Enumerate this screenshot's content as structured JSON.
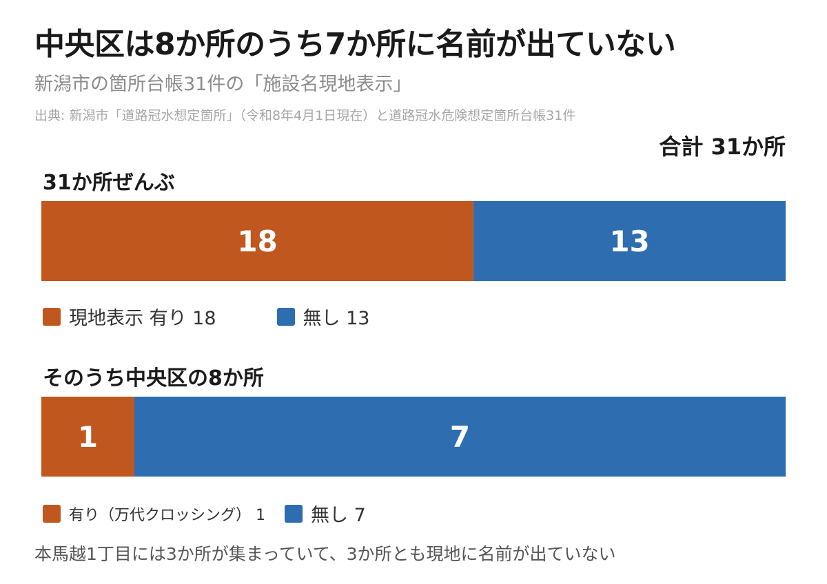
{
  "title": "中央区は8か所のうち7か所に名前が出ていない",
  "subtitle": "新潟市の箇所台帳31件の「施設名現地表示」",
  "source": "出典: 新潟市「道路冠水想定箇所」（令和8年4月1日現在）と道路冠水危険想定箇所台帳31件",
  "total_label": "合計 31か所",
  "note": "本馬越1丁目には3か所が集まっていて、3か所とも現地に名前が出ていない",
  "colors": {
    "yes": "#c0571f",
    "no": "#2d6db0"
  },
  "chart_data": [
    {
      "type": "bar",
      "orientation": "horizontal-stacked",
      "title": "31か所ぜんぶ",
      "total": 31,
      "series": [
        {
          "name": "現地表示 有り",
          "value": 18,
          "color": "#c0571f"
        },
        {
          "name": "無し",
          "value": 13,
          "color": "#2d6db0"
        }
      ],
      "legend": [
        "現地表示 有り 18",
        "無し 13"
      ]
    },
    {
      "type": "bar",
      "orientation": "horizontal-stacked",
      "title": "そのうち中央区の8か所",
      "total": 8,
      "series": [
        {
          "name": "有り（万代クロッシング）",
          "value": 1,
          "color": "#c0571f"
        },
        {
          "name": "無し",
          "value": 7,
          "color": "#2d6db0"
        }
      ],
      "legend": [
        "有り（万代クロッシング） 1",
        "無し 7"
      ]
    }
  ]
}
